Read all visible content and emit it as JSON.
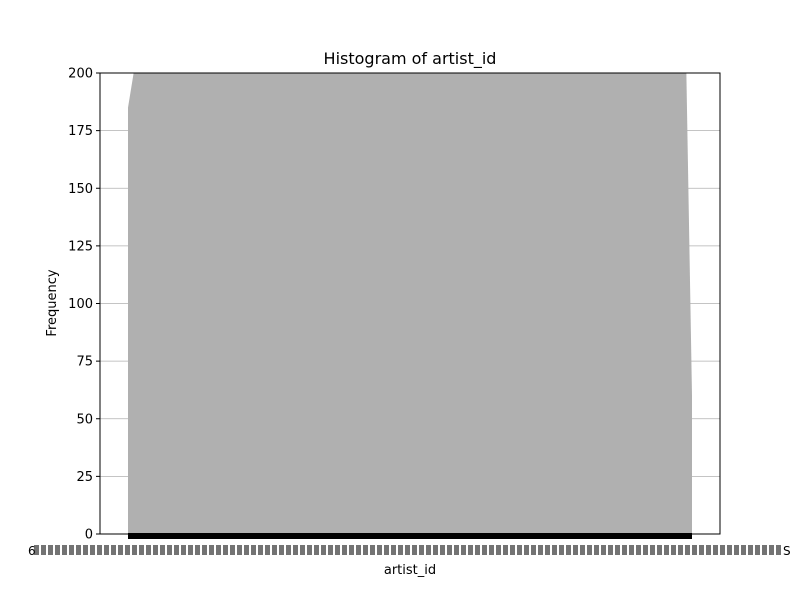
{
  "chart_data": {
    "type": "bar",
    "title": "Histogram of artist_id",
    "xlabel": "artist_id",
    "ylabel": "Frequency",
    "ylim": [
      0,
      200
    ],
    "yticks": [
      0,
      25,
      50,
      75,
      100,
      125,
      150,
      175,
      200
    ],
    "grid": "y",
    "legend": "none",
    "bar_color": "#b0b0b0",
    "tick_color": "#000000",
    "note": "hundreds of overlapping categorical x tick labels are unreadable; bars form a solid band",
    "estimated_profile": [
      {
        "x_fraction": 0.0,
        "height": 185
      },
      {
        "x_fraction": 0.01,
        "height": 200
      },
      {
        "x_fraction": 0.99,
        "height": 200
      },
      {
        "x_fraction": 1.0,
        "height": 60
      }
    ],
    "x_tick_labels_visible": {
      "left": "6",
      "right": "S"
    }
  }
}
